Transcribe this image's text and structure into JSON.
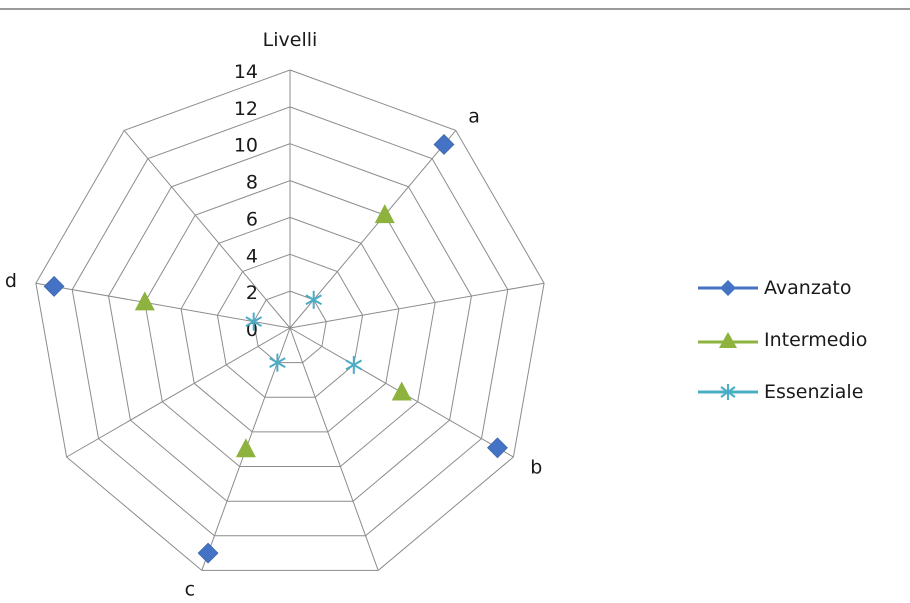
{
  "chart_data": {
    "type": "radar",
    "axis_title": "Livelli",
    "categories": [
      "",
      "a",
      "",
      "b",
      "",
      "c",
      "",
      "d",
      ""
    ],
    "range": [
      0,
      14
    ],
    "ticks": [
      0,
      2,
      4,
      6,
      8,
      10,
      12,
      14
    ],
    "tick_labels": [
      "0",
      "2",
      "4",
      "6",
      "8",
      "10",
      "12",
      "14"
    ],
    "legend_position": "right",
    "series": [
      {
        "name": "Avanzato",
        "color": "#4472c4",
        "marker": "diamond",
        "connected": false,
        "values": [
          null,
          13,
          null,
          13,
          null,
          13,
          null,
          13,
          null
        ]
      },
      {
        "name": "Intermedio",
        "color": "#8db33e",
        "marker": "triangle",
        "connected": false,
        "values": [
          null,
          8,
          null,
          7,
          null,
          7,
          null,
          8,
          null
        ]
      },
      {
        "name": "Essenziale",
        "color": "#4bacc6",
        "marker": "asterisk",
        "connected": false,
        "values": [
          null,
          2,
          null,
          4,
          null,
          2,
          null,
          2,
          null
        ]
      }
    ]
  }
}
